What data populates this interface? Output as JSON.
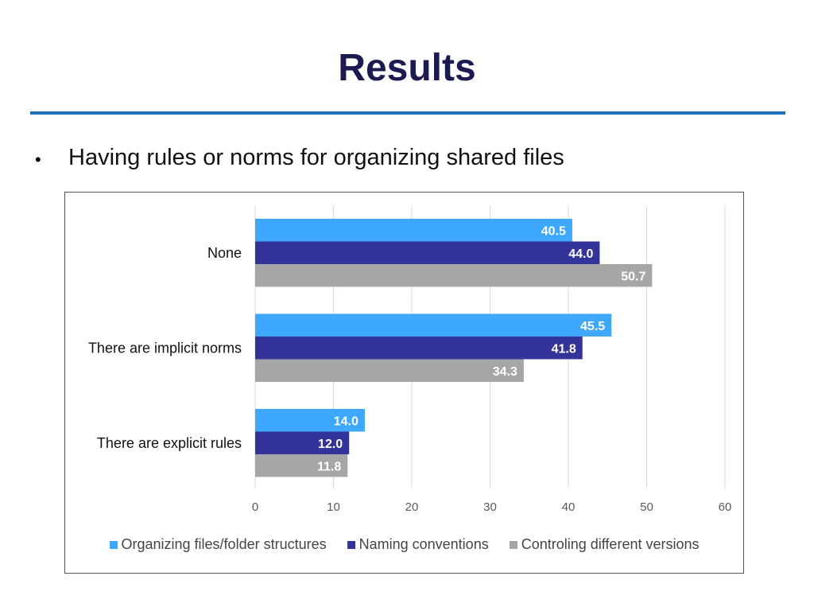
{
  "slide": {
    "title": "Results",
    "bullet": "Having rules or norms for organizing shared files"
  },
  "chart_data": {
    "type": "bar",
    "orientation": "horizontal",
    "categories": [
      "None",
      "There are implicit norms",
      "There are explicit rules"
    ],
    "series": [
      {
        "name": "Organizing files/folder structures",
        "color": "#3ea8ff",
        "values": [
          40.5,
          45.5,
          14.0
        ]
      },
      {
        "name": "Naming conventions",
        "color": "#33339a",
        "values": [
          44.0,
          41.8,
          12.0
        ]
      },
      {
        "name": "Controling different versions",
        "color": "#a6a6a6",
        "values": [
          50.7,
          34.3,
          11.8
        ]
      }
    ],
    "xlim": [
      0,
      60
    ],
    "xticks": [
      0,
      10,
      20,
      30,
      40,
      50,
      60
    ],
    "grid": true,
    "legend": "bottom",
    "data_labels": true
  }
}
